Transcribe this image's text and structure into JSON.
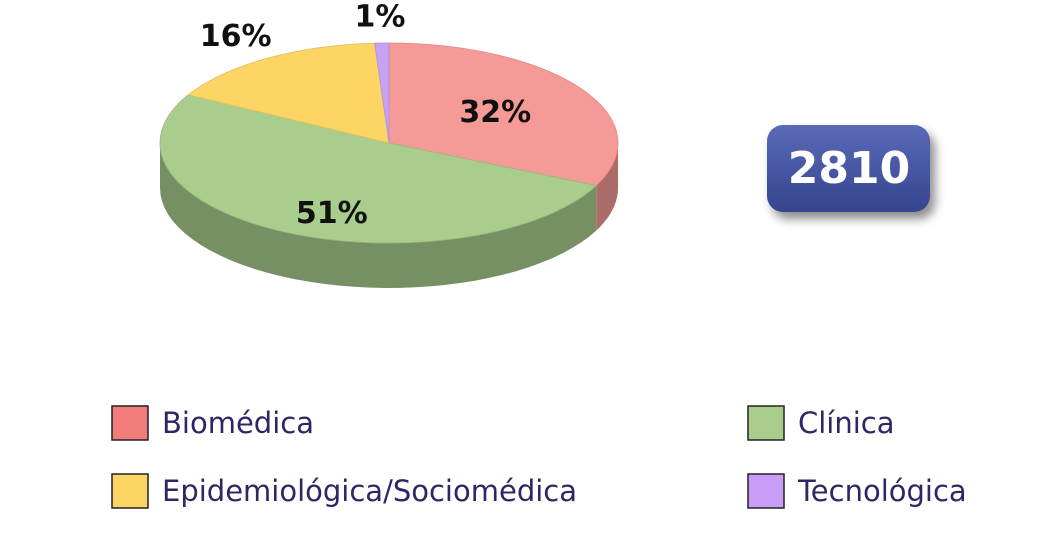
{
  "chart_data": {
    "type": "pie",
    "categories": [
      "Biomédica",
      "Clínica",
      "Epidemiológica/Sociomédica",
      "Tecnológica"
    ],
    "values": [
      32,
      51,
      16,
      1
    ],
    "value_labels": [
      "32%",
      "51%",
      "16%",
      "1%"
    ],
    "colors": [
      "#f59a97",
      "#a9cd8d",
      "#fcd565",
      "#c7a1f2"
    ],
    "legend_colors": [
      "#f27c7c",
      "#a9cd8d",
      "#fcd565",
      "#c99cf5"
    ],
    "total": 2810
  }
}
